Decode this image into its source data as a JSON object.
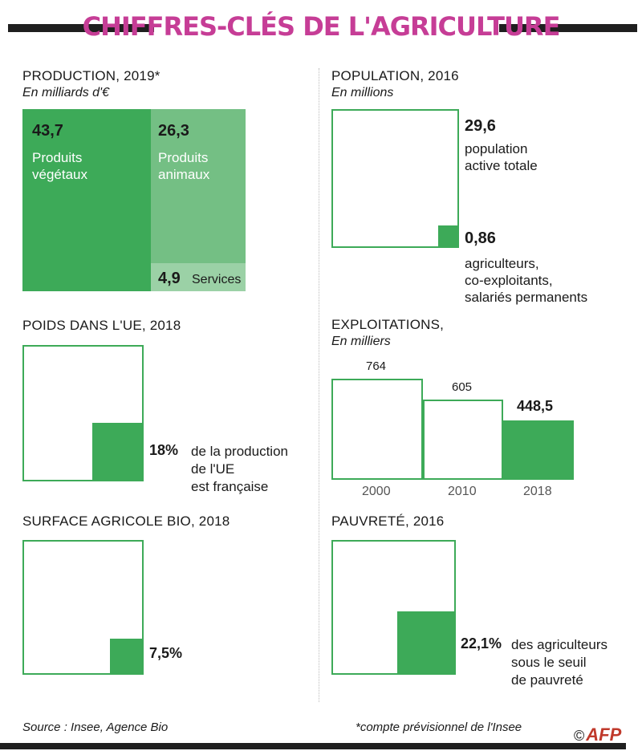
{
  "title": "CHIFFRES-CLÉS DE L'AGRICULTURE",
  "colors": {
    "accent": "#c63d96",
    "green": "#3daa58",
    "green_mid": "#74bf84",
    "green_light": "#9bd1a6"
  },
  "production": {
    "title": "PRODUCTION, 2019*",
    "subtitle": "En milliards d'€",
    "vegetal_value": "43,7",
    "vegetal_label_1": "Produits",
    "vegetal_label_2": "végétaux",
    "animal_value": "26,3",
    "animal_label_1": "Produits",
    "animal_label_2": "animaux",
    "services_value": "4,9",
    "services_label": "Services"
  },
  "population": {
    "title": "POPULATION, 2016",
    "subtitle": "En millions",
    "total_value": "29,6",
    "total_label_1": "population",
    "total_label_2": "active totale",
    "farmers_value": "0,86",
    "farmers_label_1": "agriculteurs,",
    "farmers_label_2": "co-exploitants,",
    "farmers_label_3": "salariés permanents"
  },
  "poids_ue": {
    "title": "POIDS DANS L'UE, 2018",
    "value": "18%",
    "label_1": "de la production",
    "label_2": "de l'UE",
    "label_3": "est française"
  },
  "exploitations": {
    "title": "EXPLOITATIONS,",
    "subtitle": "En milliers",
    "years": [
      "2000",
      "2010",
      "2018"
    ],
    "values": [
      "764",
      "605",
      "448,5"
    ]
  },
  "bio": {
    "title": "SURFACE AGRICOLE BIO, 2018",
    "value": "7,5%"
  },
  "pauvrete": {
    "title": "PAUVRETÉ, 2016",
    "value": "22,1%",
    "label_1": "des agriculteurs",
    "label_2": "sous le seuil",
    "label_3": "de pauvreté"
  },
  "footer": {
    "source": "Source : Insee, Agence Bio",
    "note": "*compte prévisionnel de l'Insee",
    "copyright": "©",
    "logo": "AFP"
  },
  "chart_data": [
    {
      "type": "treemap",
      "title": "PRODUCTION, 2019*",
      "subtitle": "En milliards d'€",
      "categories": [
        "Produits végétaux",
        "Produits animaux",
        "Services"
      ],
      "values": [
        43.7,
        26.3,
        4.9
      ]
    },
    {
      "type": "area-proportion",
      "title": "POPULATION, 2016",
      "subtitle": "En millions",
      "categories": [
        "population active totale",
        "agriculteurs, co-exploitants, salariés permanents"
      ],
      "values": [
        29.6,
        0.86
      ]
    },
    {
      "type": "area-proportion",
      "title": "POIDS DANS L'UE, 2018",
      "categories": [
        "de la production de l'UE est française"
      ],
      "values": [
        18
      ]
    },
    {
      "type": "bar",
      "title": "EXPLOITATIONS,",
      "subtitle": "En milliers",
      "categories": [
        "2000",
        "2010",
        "2018"
      ],
      "values": [
        764,
        605,
        448.5
      ]
    },
    {
      "type": "area-proportion",
      "title": "SURFACE AGRICOLE BIO, 2018",
      "values": [
        7.5
      ]
    },
    {
      "type": "area-proportion",
      "title": "PAUVRETÉ, 2016",
      "categories": [
        "des agriculteurs sous le seuil de pauvreté"
      ],
      "values": [
        22.1
      ]
    }
  ]
}
